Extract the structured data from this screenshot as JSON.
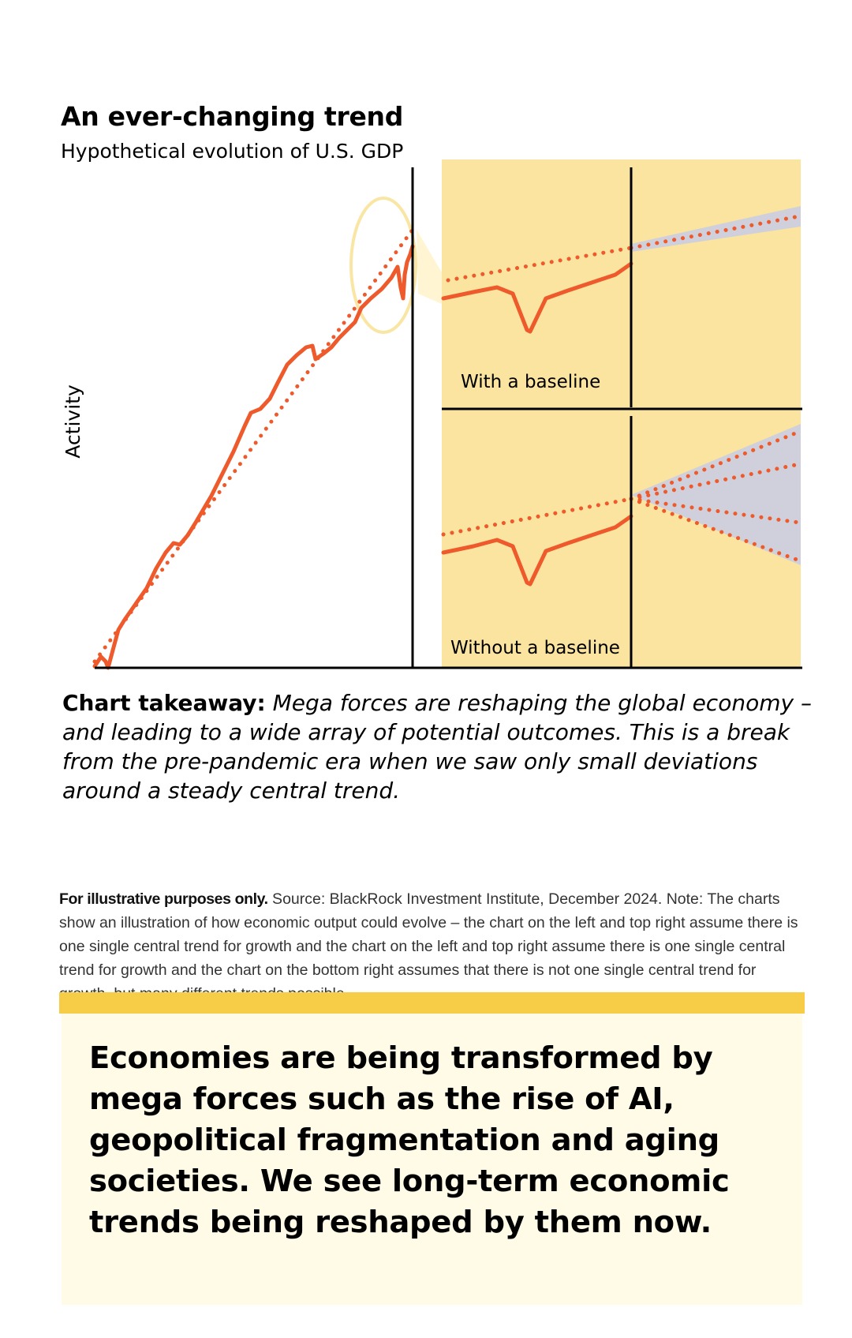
{
  "chart": {
    "title": "An ever-changing trend",
    "subtitle": "Hypothetical evolution of U.S. GDP",
    "ylabel": "Activity",
    "panel_top_label": "With a baseline",
    "panel_bottom_label": "Without a baseline"
  },
  "takeaway": {
    "lead": "Chart takeaway:",
    "body": " Mega forces are reshaping the global economy – and leading to a wide array of potential outcomes. This is a break from the pre-pandemic era when we saw only small deviations around a steady central trend."
  },
  "footnote": {
    "lead": "For illustrative purposes only.",
    "body": " Source: BlackRock Investment Institute, December 2024. Note: The charts show an illustration of how economic output could evolve – the chart on the left and top right assume there is one single central trend for growth and the chart on the left and top right assume there is one single central trend for growth and the chart on the  bottom right assumes that there is not one single central trend for growth, but many different trends possible."
  },
  "callout": {
    "text": "Economies are being transformed by mega forces such as the rise of AI, geopolitical fragmentation and aging societies. We see long-term economic trends being reshaped by them now."
  },
  "colors": {
    "line": "#ee5a2b",
    "panel_bg": "#fae49f",
    "band": "#cfd0dc",
    "highlight_circle": "#f9e6a4",
    "callout_bar": "#f7cc46",
    "callout_bg": "#fffbe7"
  },
  "chart_data": {
    "type": "line",
    "title": "An ever-changing trend",
    "subtitle": "Hypothetical evolution of U.S. GDP",
    "ylabel": "Activity",
    "xlabel": "",
    "axis_ticks": "none",
    "grid": false,
    "main": {
      "description": "illustrative activity path with a straight dotted trend line; a dip appears at the right edge just before the vertical divider",
      "series": [
        {
          "name": "Activity",
          "style": "solid"
        },
        {
          "name": "Trend",
          "style": "dotted"
        }
      ]
    },
    "panels": [
      {
        "label": "With a baseline",
        "projection": "single central trend continues with a narrow uncertainty band"
      },
      {
        "label": "Without a baseline",
        "projection": "many possible trends fanning out within a wide uncertainty band"
      }
    ]
  }
}
